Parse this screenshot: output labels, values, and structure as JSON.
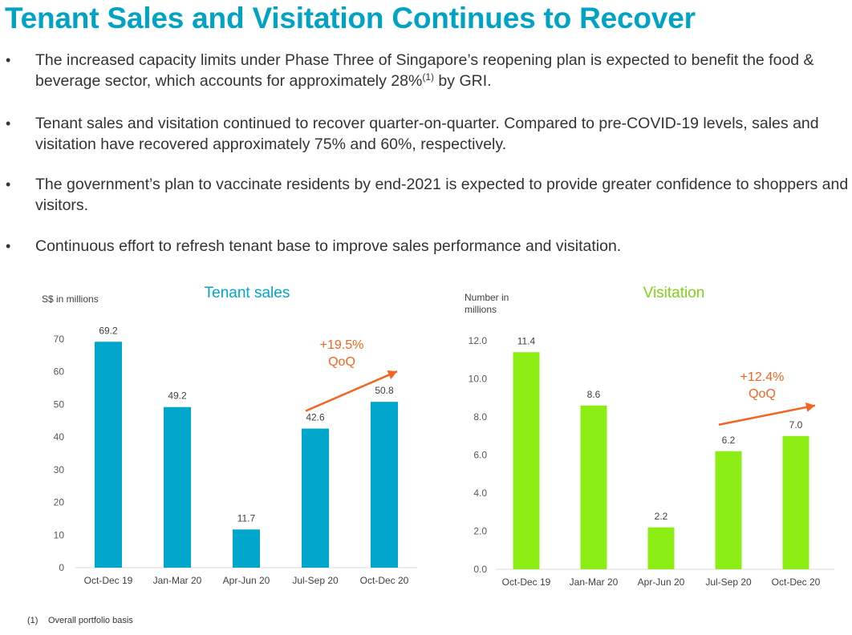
{
  "title": "Tenant Sales and Visitation Continues to Recover",
  "bullets": [
    {
      "marker": "•",
      "text_before": "The increased capacity limits under Phase Three of Singapore’s reopening plan is expected to benefit the food & beverage sector, which accounts for approximately 28%",
      "superscript": "(1)",
      "text_after": " by GRI."
    },
    {
      "marker": "•",
      "text": "Tenant sales and visitation continued to recover quarter-on-quarter. Compared to pre-COVID-19 levels, sales and visitation have recovered approximately 75% and 60%, respectively."
    },
    {
      "marker": "•",
      "text": "The government’s plan to vaccinate residents by end-2021 is expected to provide greater confidence to shoppers and visitors."
    },
    {
      "marker": "•",
      "text": "Continuous effort to refresh tenant base to improve sales performance and visitation."
    }
  ],
  "chart_data": [
    {
      "type": "bar",
      "title": "Tenant sales",
      "ylabel": "S$ in millions",
      "xlabel": "",
      "categories": [
        "Oct-Dec 19",
        "Jan-Mar 20",
        "Apr-Jun 20",
        "Jul-Sep 20",
        "Oct-Dec 20"
      ],
      "values": [
        69.2,
        49.2,
        11.7,
        42.6,
        50.8
      ],
      "value_labels": [
        "69.2",
        "49.2",
        "11.7",
        "42.6",
        "50.8"
      ],
      "ylim": [
        0,
        70
      ],
      "yticks": [
        0,
        10,
        20,
        30,
        40,
        50,
        60,
        70
      ],
      "ytick_labels": [
        "0",
        "10",
        "20",
        "30",
        "40",
        "50",
        "60",
        "70"
      ],
      "annotation": {
        "line1": "+19.5%",
        "line2": "QoQ",
        "from": "Jul-Sep 20",
        "to": "Oct-Dec 20"
      },
      "colors": {
        "bar": "#00a6cc",
        "title": "#00a6cc",
        "annotation": "#f26522"
      },
      "grid": false
    },
    {
      "type": "bar",
      "title": "Visitation",
      "ylabel": "Number in millions",
      "ylabel_lines": [
        "Number in",
        "millions"
      ],
      "xlabel": "",
      "categories": [
        "Oct-Dec 19",
        "Jan-Mar 20",
        "Apr-Jun 20",
        "Jul-Sep 20",
        "Oct-Dec 20"
      ],
      "values": [
        11.4,
        8.6,
        2.2,
        6.2,
        7.0
      ],
      "value_labels": [
        "11.4",
        "8.6",
        "2.2",
        "6.2",
        "7.0"
      ],
      "ylim": [
        0,
        12
      ],
      "yticks": [
        0,
        2,
        4,
        6,
        8,
        10,
        12
      ],
      "ytick_labels": [
        "0.0",
        "2.0",
        "4.0",
        "6.0",
        "8.0",
        "10.0",
        "12.0"
      ],
      "annotation": {
        "line1": "+12.4%",
        "line2": "QoQ",
        "from": "Jul-Sep 20",
        "to": "Oct-Dec 20"
      },
      "colors": {
        "bar": "#8ced14",
        "title": "#7dd318",
        "annotation": "#f26522"
      },
      "grid": false
    }
  ],
  "footnote": {
    "number": "(1)",
    "text": "Overall portfolio basis"
  }
}
